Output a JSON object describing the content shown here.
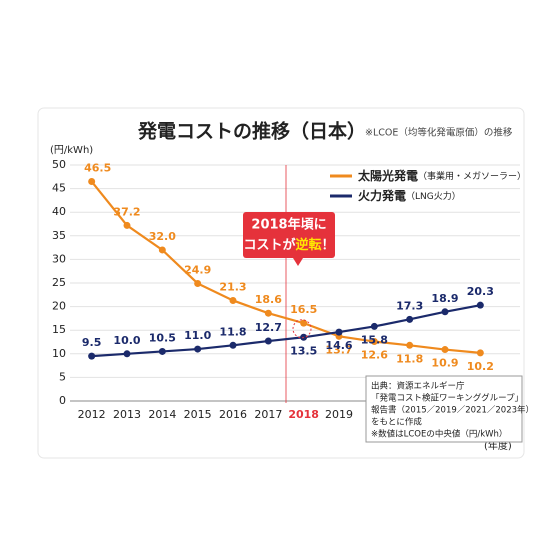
{
  "chart_data": {
    "type": "line",
    "title": "発電コストの推移（日本）",
    "subtitle": "※LCOE（均等化発電原価）の推移",
    "y_label": "(円/kWh)",
    "x_label": "(年度)",
    "categories": [
      "2012",
      "2013",
      "2014",
      "2015",
      "2016",
      "2017",
      "2018",
      "2019",
      null,
      null,
      null,
      null
    ],
    "series": [
      {
        "name": "太陽光発電",
        "name_note": "（事業用・メガソーラー）",
        "color": "#ef8a1e",
        "values": [
          46.5,
          37.2,
          32.0,
          24.9,
          21.3,
          18.6,
          16.5,
          13.7,
          12.6,
          11.8,
          10.9,
          10.2
        ],
        "value_labels": [
          "46.5",
          "37.2",
          "32.0",
          "24.9",
          "21.3",
          "18.6",
          "16.5",
          "13.7",
          "12.6",
          "11.8",
          "10.9",
          "10.2"
        ]
      },
      {
        "name": "火力発電",
        "name_note": "（LNG火力）",
        "color": "#1b2a6b",
        "values": [
          9.5,
          10.0,
          10.5,
          11.0,
          11.8,
          12.7,
          13.5,
          14.6,
          15.8,
          17.3,
          18.9,
          20.3
        ],
        "value_labels": [
          "9.5",
          "10.0",
          "10.5",
          "11.0",
          "11.8",
          "12.7",
          "13.5",
          "14.6",
          "15.8",
          "17.3",
          "18.9",
          "20.3"
        ]
      }
    ],
    "ylim": [
      0,
      50
    ],
    "yticks": [
      0,
      5,
      10,
      15,
      20,
      25,
      30,
      35,
      40,
      45,
      50
    ],
    "grid": true,
    "annotation": [
      "2018年頃に",
      "コストが",
      "逆転",
      "！"
    ],
    "source": [
      "出典：資源エネルギー庁",
      "「発電コスト検証ワーキンググループ」",
      "報告書（2015／2019／2021／2023年）",
      "をもとに作成",
      "※数値はLCOEの中央値（円/kWh）"
    ]
  }
}
